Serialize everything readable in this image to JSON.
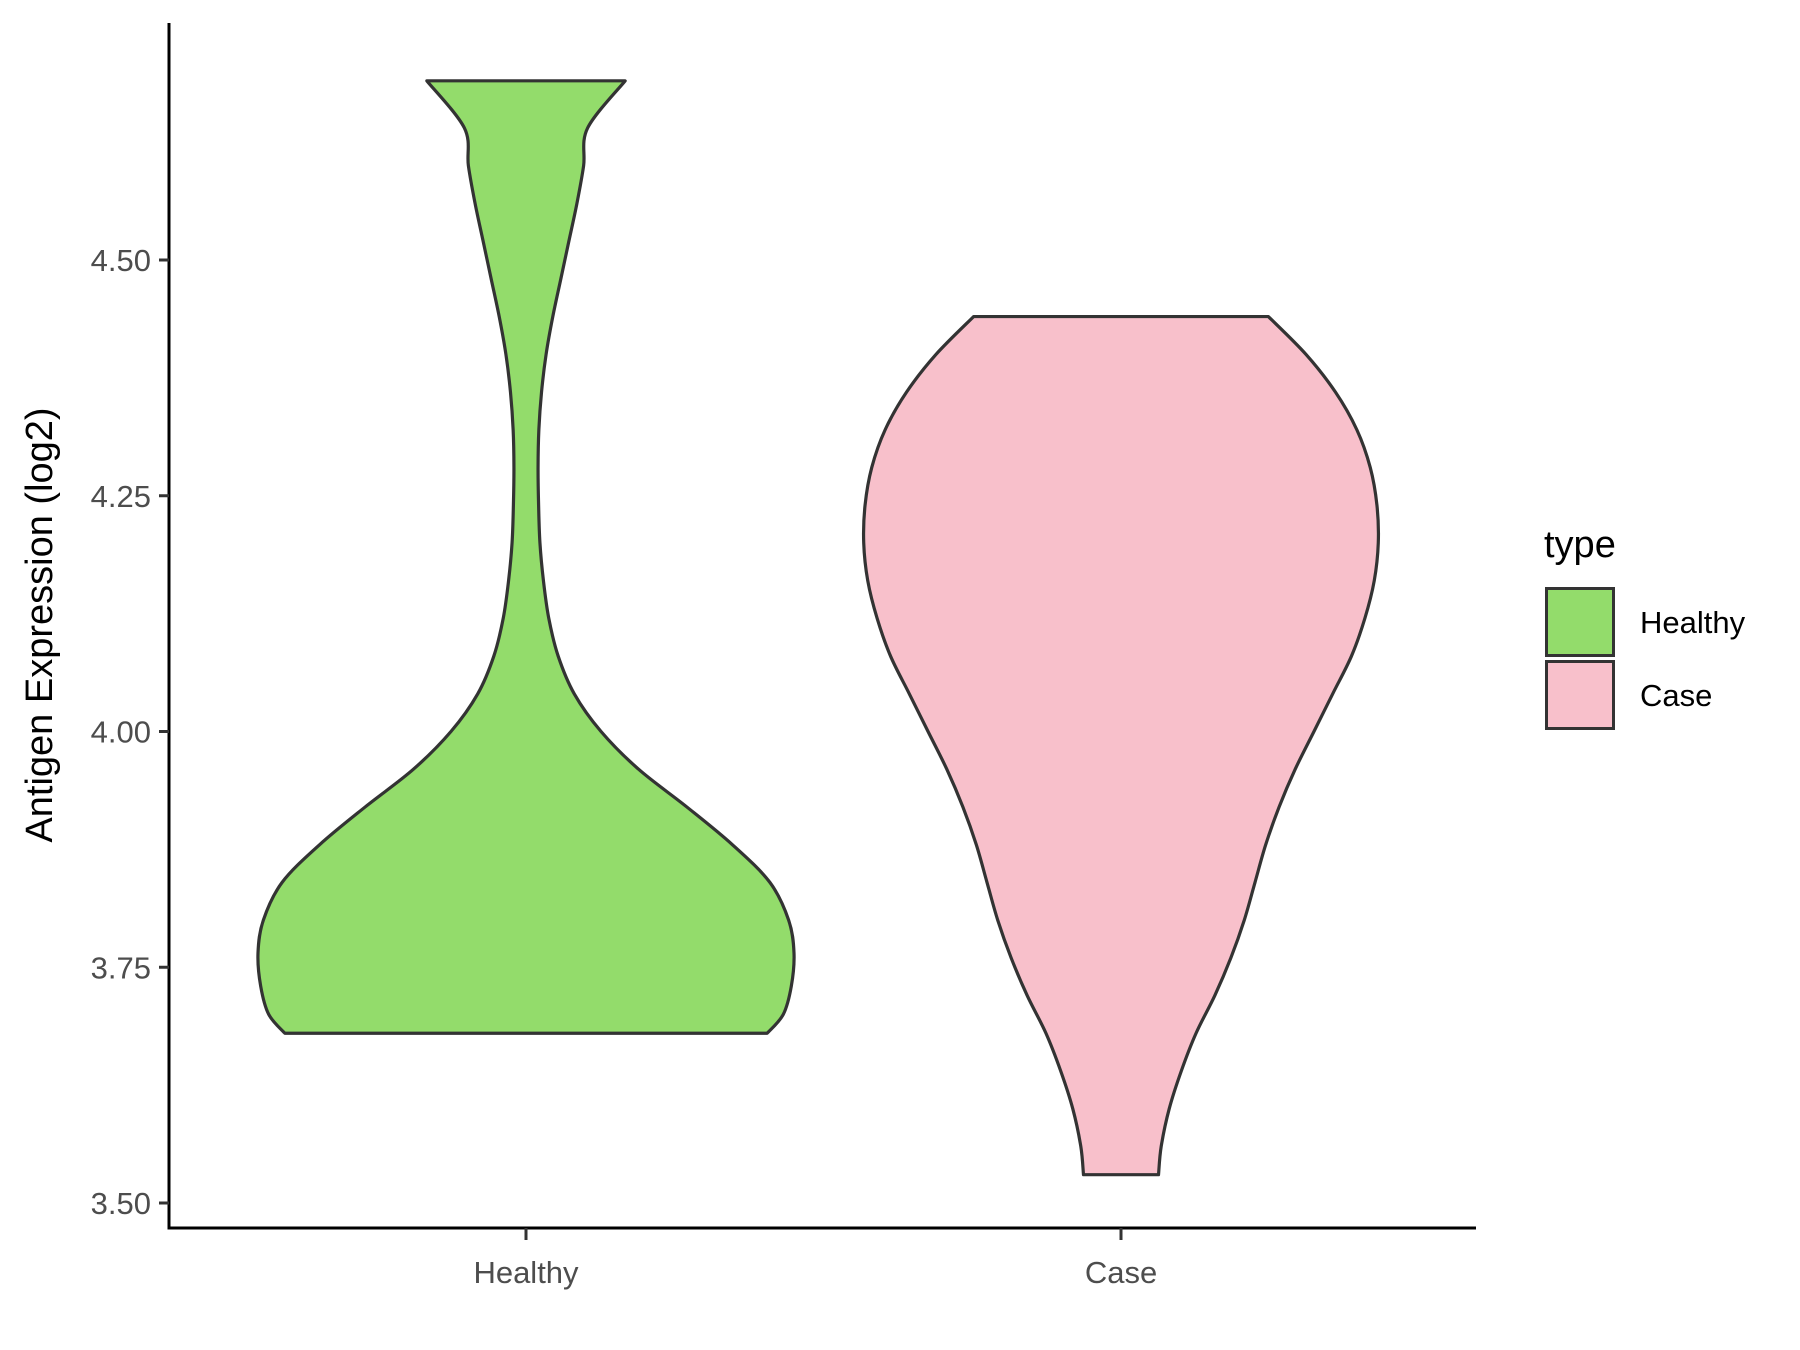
{
  "chart_data": {
    "type": "violin",
    "ylabel": "Antigen Expression (log2)",
    "xlabel": "",
    "categories": [
      "Healthy",
      "Case"
    ],
    "ylim": [
      3.5,
      4.72
    ],
    "yticks": [
      3.5,
      3.75,
      4.0,
      4.25,
      4.5
    ],
    "ytick_labels": [
      "3.50",
      "3.75",
      "4.00",
      "4.25",
      "4.50"
    ],
    "grid": false,
    "legend": {
      "title": "type",
      "placement": "right",
      "entries": [
        "Healthy",
        "Case"
      ]
    },
    "series": [
      {
        "name": "Healthy",
        "color": "#93dc6b",
        "min": 3.68,
        "max": 4.69,
        "density_profile": [
          [
            3.68,
            0.9
          ],
          [
            3.7,
            0.96
          ],
          [
            3.73,
            0.99
          ],
          [
            3.765,
            1.0
          ],
          [
            3.8,
            0.98
          ],
          [
            3.84,
            0.91
          ],
          [
            3.88,
            0.77
          ],
          [
            3.92,
            0.6
          ],
          [
            3.96,
            0.42
          ],
          [
            4.0,
            0.28
          ],
          [
            4.04,
            0.18
          ],
          [
            4.08,
            0.12
          ],
          [
            4.12,
            0.085
          ],
          [
            4.16,
            0.065
          ],
          [
            4.2,
            0.052
          ],
          [
            4.24,
            0.047
          ],
          [
            4.28,
            0.045
          ],
          [
            4.32,
            0.048
          ],
          [
            4.36,
            0.058
          ],
          [
            4.4,
            0.075
          ],
          [
            4.44,
            0.1
          ],
          [
            4.48,
            0.13
          ],
          [
            4.52,
            0.16
          ],
          [
            4.56,
            0.19
          ],
          [
            4.6,
            0.215
          ],
          [
            4.64,
            0.23
          ],
          [
            4.69,
            0.37
          ]
        ]
      },
      {
        "name": "Case",
        "color": "#f8c0cb",
        "min": 3.53,
        "max": 4.44,
        "density_profile": [
          [
            3.53,
            0.14
          ],
          [
            3.56,
            0.15
          ],
          [
            3.6,
            0.18
          ],
          [
            3.64,
            0.225
          ],
          [
            3.68,
            0.28
          ],
          [
            3.72,
            0.35
          ],
          [
            3.76,
            0.41
          ],
          [
            3.8,
            0.46
          ],
          [
            3.84,
            0.5
          ],
          [
            3.88,
            0.54
          ],
          [
            3.92,
            0.59
          ],
          [
            3.96,
            0.65
          ],
          [
            4.0,
            0.72
          ],
          [
            4.04,
            0.79
          ],
          [
            4.08,
            0.86
          ],
          [
            4.12,
            0.91
          ],
          [
            4.16,
            0.945
          ],
          [
            4.2,
            0.96
          ],
          [
            4.24,
            0.955
          ],
          [
            4.28,
            0.93
          ],
          [
            4.32,
            0.88
          ],
          [
            4.36,
            0.8
          ],
          [
            4.4,
            0.69
          ],
          [
            4.44,
            0.55
          ]
        ]
      }
    ]
  }
}
